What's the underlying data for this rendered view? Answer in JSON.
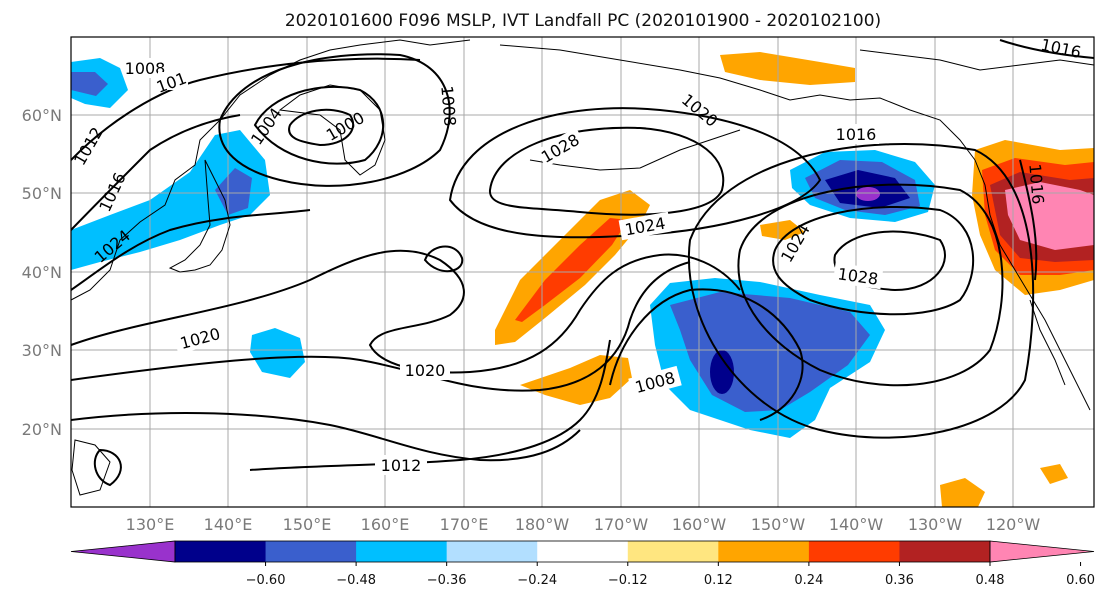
{
  "title": "2020101600 F096 MSLP, IVT Landfall PC (2020101900 - 2020102100)",
  "lat_labels": [
    "60°N",
    "50°N",
    "40°N",
    "30°N",
    "20°N"
  ],
  "lon_labels": [
    "130°E",
    "140°E",
    "150°E",
    "160°E",
    "170°E",
    "180°W",
    "170°W",
    "160°W",
    "150°W",
    "140°W",
    "130°W",
    "120°W"
  ],
  "colorbar": {
    "colors": [
      "#9932cc",
      "#00008b",
      "#3a5fcd",
      "#00bfff",
      "#b2dfff",
      "#ffffff",
      "#ffe680",
      "#ffa500",
      "#ff3c00",
      "#b22222",
      "#ff85b3"
    ],
    "ticks": [
      "−0.60",
      "−0.48",
      "−0.36",
      "−0.24",
      "−0.12",
      "0.12",
      "0.24",
      "0.36",
      "0.48",
      "0.60"
    ]
  },
  "contour_labels": [
    {
      "text": "1008"
    },
    {
      "text": "101"
    },
    {
      "text": "1004"
    },
    {
      "text": "1000"
    },
    {
      "text": "1008"
    },
    {
      "text": "1012"
    },
    {
      "text": "1016"
    },
    {
      "text": "1024"
    },
    {
      "text": "1028"
    },
    {
      "text": "1020"
    },
    {
      "text": "1016"
    },
    {
      "text": "1016"
    },
    {
      "text": "1024"
    },
    {
      "text": "1024"
    },
    {
      "text": "1028"
    },
    {
      "text": "1016"
    },
    {
      "text": "1020"
    },
    {
      "text": "1020"
    },
    {
      "text": "1008"
    },
    {
      "text": "1012"
    }
  ]
}
